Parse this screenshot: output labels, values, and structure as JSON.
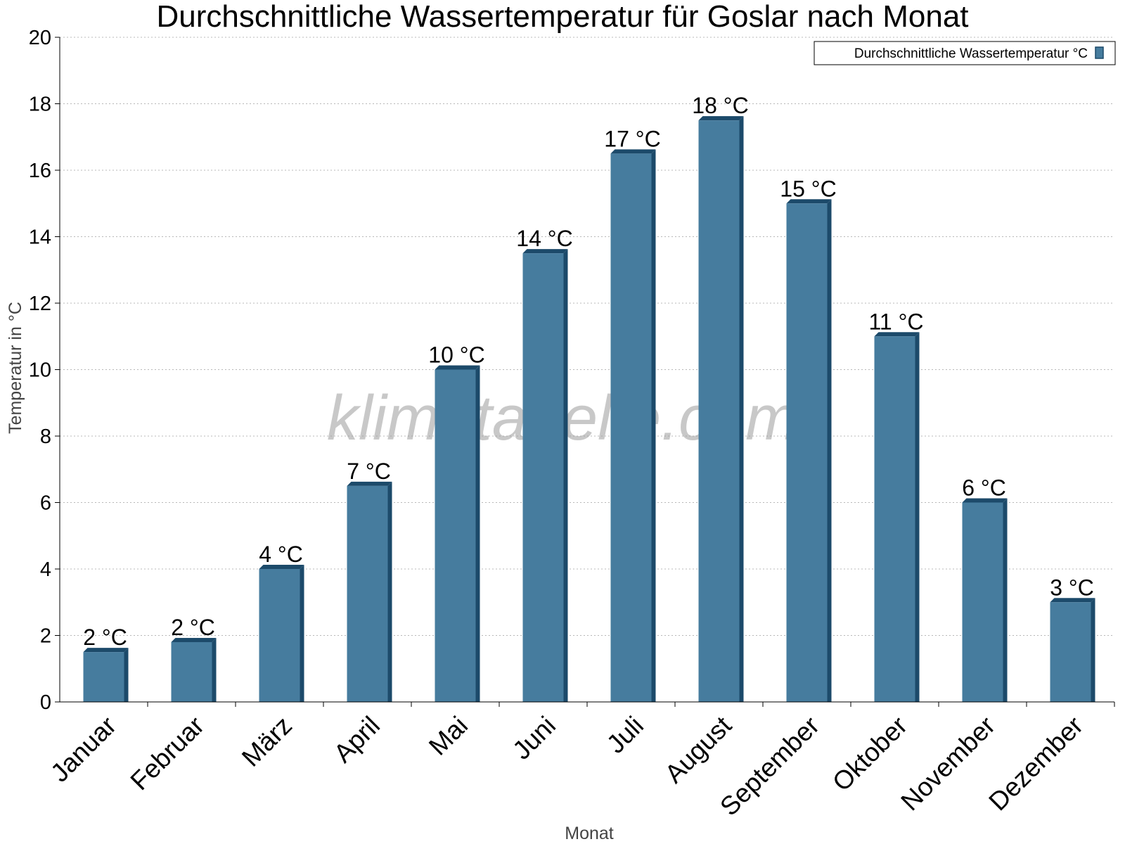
{
  "chart_data": {
    "type": "bar",
    "title": "Durchschnittliche Wassertemperatur für Goslar nach Monat",
    "xlabel": "Monat",
    "ylabel": "Temperatur in °C",
    "ylim": [
      0,
      20
    ],
    "yticks": [
      0,
      2,
      4,
      6,
      8,
      10,
      12,
      14,
      16,
      18,
      20
    ],
    "grid": true,
    "legend_position": "top-right",
    "categories": [
      "Januar",
      "Februar",
      "März",
      "April",
      "Mai",
      "Juni",
      "Juli",
      "August",
      "September",
      "Oktober",
      "November",
      "Dezember"
    ],
    "series": [
      {
        "name": "Durchschnittliche Wassertemperatur °C",
        "values": [
          1.5,
          1.8,
          4.0,
          6.5,
          10.0,
          13.5,
          16.5,
          17.5,
          15.0,
          11.0,
          6.0,
          3.0
        ],
        "labels": [
          "2 °C",
          "2 °C",
          "4 °C",
          "7 °C",
          "10 °C",
          "14 °C",
          "17 °C",
          "18 °C",
          "15 °C",
          "11 °C",
          "6 °C",
          "3 °C"
        ],
        "color": "#467c9e",
        "edge_color": "#1c4a6a"
      }
    ],
    "watermark": "klimatabelle.com"
  }
}
